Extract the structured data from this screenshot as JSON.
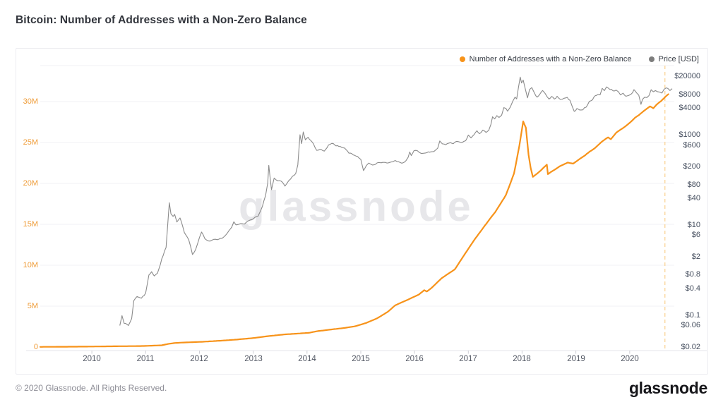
{
  "page": {
    "title": "Bitcoin: Number of Addresses with a Non-Zero Balance",
    "watermark": "glassnode",
    "footer": {
      "copyright": "© 2020 Glassnode. All Rights Reserved.",
      "logo": "glassnode"
    }
  },
  "legend": {
    "items": [
      {
        "label": "Number of Addresses with a Non-Zero Balance",
        "color": "#f7931a"
      },
      {
        "label": "Price [USD]",
        "color": "#7d7d7d"
      }
    ]
  },
  "chart_data": {
    "type": "line",
    "title": "Bitcoin: Number of Addresses with a Non-Zero Balance",
    "x_axis": {
      "range": [
        2009.04,
        2020.83
      ],
      "ticks": [
        2010,
        2011,
        2012,
        2013,
        2014,
        2015,
        2016,
        2017,
        2018,
        2019,
        2020
      ]
    },
    "left_axis": {
      "name": "Number of Addresses with a Non-Zero Balance",
      "unit": "millions",
      "color": "#ef9d3a",
      "range": [
        0,
        34.4
      ],
      "ticks": [
        {
          "label": "30M",
          "value": 30
        },
        {
          "label": "25M",
          "value": 25
        },
        {
          "label": "20M",
          "value": 20
        },
        {
          "label": "15M",
          "value": 15
        },
        {
          "label": "10M",
          "value": 10
        },
        {
          "label": "5M",
          "value": 5
        },
        {
          "label": "0",
          "value": 0
        }
      ]
    },
    "right_axis": {
      "name": "Price [USD]",
      "scale": "log",
      "color": "#454e5e",
      "range": [
        0.02,
        34400
      ],
      "ticks": [
        {
          "label": "$20000",
          "value": 20000
        },
        {
          "label": "$8000",
          "value": 8000
        },
        {
          "label": "$4000",
          "value": 4000
        },
        {
          "label": "$1000",
          "value": 1000
        },
        {
          "label": "$600",
          "value": 600
        },
        {
          "label": "$200",
          "value": 200
        },
        {
          "label": "$80",
          "value": 80
        },
        {
          "label": "$40",
          "value": 40
        },
        {
          "label": "$10",
          "value": 10
        },
        {
          "label": "$6",
          "value": 6
        },
        {
          "label": "$2",
          "value": 2
        },
        {
          "label": "$0.8",
          "value": 0.8
        },
        {
          "label": "$0.4",
          "value": 0.4
        },
        {
          "label": "$0.1",
          "value": 0.1
        },
        {
          "label": "$0.06",
          "value": 0.06
        },
        {
          "label": "$0.02",
          "value": 0.02
        }
      ]
    },
    "current_date_line": {
      "x": 2020.655,
      "color": "#fbd9a3"
    },
    "series": [
      {
        "name": "Number of Addresses with a Non-Zero Balance",
        "axis": "left",
        "color": "#f7931a",
        "width": 2.2,
        "unit": "millions of addresses",
        "points": [
          [
            2009.04,
            0.02
          ],
          [
            2009.6,
            0.04
          ],
          [
            2010.0,
            0.06
          ],
          [
            2010.5,
            0.1
          ],
          [
            2010.9,
            0.12
          ],
          [
            2011.1,
            0.16
          ],
          [
            2011.3,
            0.22
          ],
          [
            2011.42,
            0.38
          ],
          [
            2011.55,
            0.5
          ],
          [
            2011.7,
            0.55
          ],
          [
            2011.9,
            0.6
          ],
          [
            2012.1,
            0.66
          ],
          [
            2012.4,
            0.78
          ],
          [
            2012.7,
            0.92
          ],
          [
            2013.0,
            1.1
          ],
          [
            2013.3,
            1.35
          ],
          [
            2013.6,
            1.55
          ],
          [
            2013.9,
            1.68
          ],
          [
            2014.05,
            1.75
          ],
          [
            2014.2,
            1.95
          ],
          [
            2014.45,
            2.15
          ],
          [
            2014.7,
            2.33
          ],
          [
            2014.9,
            2.55
          ],
          [
            2015.1,
            2.95
          ],
          [
            2015.3,
            3.5
          ],
          [
            2015.5,
            4.3
          ],
          [
            2015.64,
            5.1
          ],
          [
            2015.88,
            5.8
          ],
          [
            2016.08,
            6.4
          ],
          [
            2016.18,
            6.95
          ],
          [
            2016.23,
            6.78
          ],
          [
            2016.32,
            7.25
          ],
          [
            2016.5,
            8.4
          ],
          [
            2016.75,
            9.5
          ],
          [
            2016.94,
            11.4
          ],
          [
            2017.1,
            13.0
          ],
          [
            2017.3,
            14.8
          ],
          [
            2017.5,
            16.5
          ],
          [
            2017.7,
            18.6
          ],
          [
            2017.85,
            21.2
          ],
          [
            2017.95,
            24.6
          ],
          [
            2018.02,
            27.6
          ],
          [
            2018.07,
            26.8
          ],
          [
            2018.12,
            23.5
          ],
          [
            2018.16,
            21.9
          ],
          [
            2018.2,
            20.8
          ],
          [
            2018.28,
            21.2
          ],
          [
            2018.38,
            21.8
          ],
          [
            2018.46,
            22.3
          ],
          [
            2018.48,
            21.15
          ],
          [
            2018.56,
            21.5
          ],
          [
            2018.7,
            22.1
          ],
          [
            2018.85,
            22.55
          ],
          [
            2018.95,
            22.4
          ],
          [
            2019.05,
            22.85
          ],
          [
            2019.2,
            23.6
          ],
          [
            2019.35,
            24.3
          ],
          [
            2019.5,
            25.2
          ],
          [
            2019.6,
            25.65
          ],
          [
            2019.65,
            25.4
          ],
          [
            2019.75,
            26.2
          ],
          [
            2019.9,
            26.9
          ],
          [
            2020.0,
            27.4
          ],
          [
            2020.1,
            28.0
          ],
          [
            2020.2,
            28.5
          ],
          [
            2020.3,
            29.0
          ],
          [
            2020.38,
            29.4
          ],
          [
            2020.44,
            29.15
          ],
          [
            2020.5,
            29.6
          ],
          [
            2020.58,
            30.0
          ],
          [
            2020.66,
            30.55
          ],
          [
            2020.72,
            30.9
          ]
        ]
      },
      {
        "name": "Price [USD]",
        "axis": "right",
        "color": "#8b8b8b",
        "width": 1.1,
        "unit": "USD",
        "points": [
          [
            2010.52,
            0.06
          ],
          [
            2010.56,
            0.095
          ],
          [
            2010.6,
            0.065
          ],
          [
            2010.68,
            0.06
          ],
          [
            2010.74,
            0.08
          ],
          [
            2010.78,
            0.2
          ],
          [
            2010.84,
            0.24
          ],
          [
            2010.92,
            0.22
          ],
          [
            2011.0,
            0.3
          ],
          [
            2011.06,
            0.78
          ],
          [
            2011.11,
            0.95
          ],
          [
            2011.16,
            0.72
          ],
          [
            2011.22,
            0.88
          ],
          [
            2011.3,
            1.8
          ],
          [
            2011.38,
            3.2
          ],
          [
            2011.44,
            29.5
          ],
          [
            2011.47,
            17.5
          ],
          [
            2011.51,
            14.8
          ],
          [
            2011.54,
            16.4
          ],
          [
            2011.58,
            10.8
          ],
          [
            2011.64,
            13.2
          ],
          [
            2011.72,
            6.8
          ],
          [
            2011.8,
            4.6
          ],
          [
            2011.87,
            2.2
          ],
          [
            2011.93,
            2.9
          ],
          [
            2012.0,
            5.4
          ],
          [
            2012.04,
            6.9
          ],
          [
            2012.1,
            4.9
          ],
          [
            2012.2,
            4.4
          ],
          [
            2012.3,
            4.9
          ],
          [
            2012.42,
            5.1
          ],
          [
            2012.52,
            6.6
          ],
          [
            2012.6,
            9.5
          ],
          [
            2012.64,
            11.9
          ],
          [
            2012.68,
            10.1
          ],
          [
            2012.76,
            11.3
          ],
          [
            2012.84,
            10.3
          ],
          [
            2012.92,
            12.7
          ],
          [
            2013.0,
            13.4
          ],
          [
            2013.09,
            16.0
          ],
          [
            2013.17,
            28
          ],
          [
            2013.23,
            49
          ],
          [
            2013.27,
            95
          ],
          [
            2013.29,
            233
          ],
          [
            2013.31,
            140
          ],
          [
            2013.34,
            67
          ],
          [
            2013.39,
            118
          ],
          [
            2013.46,
            104
          ],
          [
            2013.54,
            96
          ],
          [
            2013.59,
            78
          ],
          [
            2013.66,
            103
          ],
          [
            2013.73,
            124
          ],
          [
            2013.79,
            136
          ],
          [
            2013.83,
            208
          ],
          [
            2013.87,
            1015
          ],
          [
            2013.9,
            640
          ],
          [
            2013.93,
            1120
          ],
          [
            2013.97,
            745
          ],
          [
            2014.02,
            835
          ],
          [
            2014.07,
            700
          ],
          [
            2014.12,
            620
          ],
          [
            2014.18,
            450
          ],
          [
            2014.26,
            500
          ],
          [
            2014.32,
            455
          ],
          [
            2014.4,
            610
          ],
          [
            2014.46,
            655
          ],
          [
            2014.54,
            600
          ],
          [
            2014.62,
            585
          ],
          [
            2014.7,
            490
          ],
          [
            2014.78,
            395
          ],
          [
            2014.86,
            362
          ],
          [
            2014.94,
            350
          ],
          [
            2015.0,
            316
          ],
          [
            2015.05,
            178
          ],
          [
            2015.1,
            222
          ],
          [
            2015.15,
            260
          ],
          [
            2015.22,
            236
          ],
          [
            2015.3,
            247
          ],
          [
            2015.38,
            233
          ],
          [
            2015.46,
            238
          ],
          [
            2015.54,
            229
          ],
          [
            2015.62,
            263
          ],
          [
            2015.7,
            255
          ],
          [
            2015.76,
            236
          ],
          [
            2015.84,
            272
          ],
          [
            2015.88,
            330
          ],
          [
            2015.91,
            432
          ],
          [
            2015.94,
            356
          ],
          [
            2015.99,
            428
          ],
          [
            2016.05,
            434
          ],
          [
            2016.12,
            398
          ],
          [
            2016.2,
            420
          ],
          [
            2016.28,
            417
          ],
          [
            2016.36,
            456
          ],
          [
            2016.43,
            530
          ],
          [
            2016.47,
            762
          ],
          [
            2016.52,
            665
          ],
          [
            2016.58,
            610
          ],
          [
            2016.64,
            655
          ],
          [
            2016.72,
            622
          ],
          [
            2016.8,
            712
          ],
          [
            2016.88,
            736
          ],
          [
            2016.95,
            784
          ],
          [
            2017.0,
            998
          ],
          [
            2017.05,
            892
          ],
          [
            2017.11,
            1065
          ],
          [
            2017.16,
            1190
          ],
          [
            2017.21,
            1048
          ],
          [
            2017.27,
            1275
          ],
          [
            2017.33,
            1180
          ],
          [
            2017.38,
            1360
          ],
          [
            2017.42,
            1820
          ],
          [
            2017.45,
            2580
          ],
          [
            2017.49,
            2260
          ],
          [
            2017.53,
            2680
          ],
          [
            2017.57,
            2420
          ],
          [
            2017.62,
            2920
          ],
          [
            2017.66,
            4380
          ],
          [
            2017.7,
            4060
          ],
          [
            2017.73,
            3480
          ],
          [
            2017.78,
            4420
          ],
          [
            2017.83,
            6250
          ],
          [
            2017.87,
            7450
          ],
          [
            2017.9,
            6480
          ],
          [
            2017.93,
            10600
          ],
          [
            2017.965,
            19350
          ],
          [
            2017.99,
            14200
          ],
          [
            2018.02,
            16900
          ],
          [
            2018.06,
            10900
          ],
          [
            2018.1,
            7000
          ],
          [
            2018.14,
            10300
          ],
          [
            2018.18,
            11100
          ],
          [
            2018.23,
            8600
          ],
          [
            2018.28,
            7020
          ],
          [
            2018.33,
            8250
          ],
          [
            2018.38,
            9350
          ],
          [
            2018.43,
            8400
          ],
          [
            2018.5,
            6350
          ],
          [
            2018.55,
            7650
          ],
          [
            2018.6,
            6700
          ],
          [
            2018.65,
            7350
          ],
          [
            2018.71,
            6280
          ],
          [
            2018.78,
            6520
          ],
          [
            2018.84,
            6420
          ],
          [
            2018.89,
            5600
          ],
          [
            2018.93,
            4050
          ],
          [
            2018.97,
            3250
          ],
          [
            2019.02,
            3820
          ],
          [
            2019.07,
            3640
          ],
          [
            2019.13,
            3580
          ],
          [
            2019.19,
            4060
          ],
          [
            2019.25,
            5250
          ],
          [
            2019.31,
            5620
          ],
          [
            2019.36,
            7250
          ],
          [
            2019.41,
            8120
          ],
          [
            2019.45,
            7980
          ],
          [
            2019.49,
            11350
          ],
          [
            2019.53,
            9850
          ],
          [
            2019.57,
            11900
          ],
          [
            2019.61,
            10650
          ],
          [
            2019.66,
            10280
          ],
          [
            2019.71,
            9580
          ],
          [
            2019.75,
            10420
          ],
          [
            2019.79,
            9480
          ],
          [
            2019.83,
            8220
          ],
          [
            2019.88,
            8620
          ],
          [
            2019.93,
            7320
          ],
          [
            2019.98,
            7180
          ],
          [
            2020.03,
            7950
          ],
          [
            2020.08,
            9920
          ],
          [
            2020.13,
            8780
          ],
          [
            2020.17,
            7950
          ],
          [
            2020.21,
            4980
          ],
          [
            2020.24,
            6320
          ],
          [
            2020.28,
            6720
          ],
          [
            2020.32,
            6440
          ],
          [
            2020.36,
            7120
          ],
          [
            2020.4,
            9320
          ],
          [
            2020.44,
            8850
          ],
          [
            2020.48,
            9620
          ],
          [
            2020.52,
            9160
          ],
          [
            2020.56,
            9280
          ],
          [
            2020.6,
            9120
          ],
          [
            2020.64,
            10920
          ],
          [
            2020.68,
            11650
          ],
          [
            2020.71,
            11080
          ],
          [
            2020.75,
            10280
          ],
          [
            2020.79,
            10620
          ]
        ]
      }
    ]
  }
}
